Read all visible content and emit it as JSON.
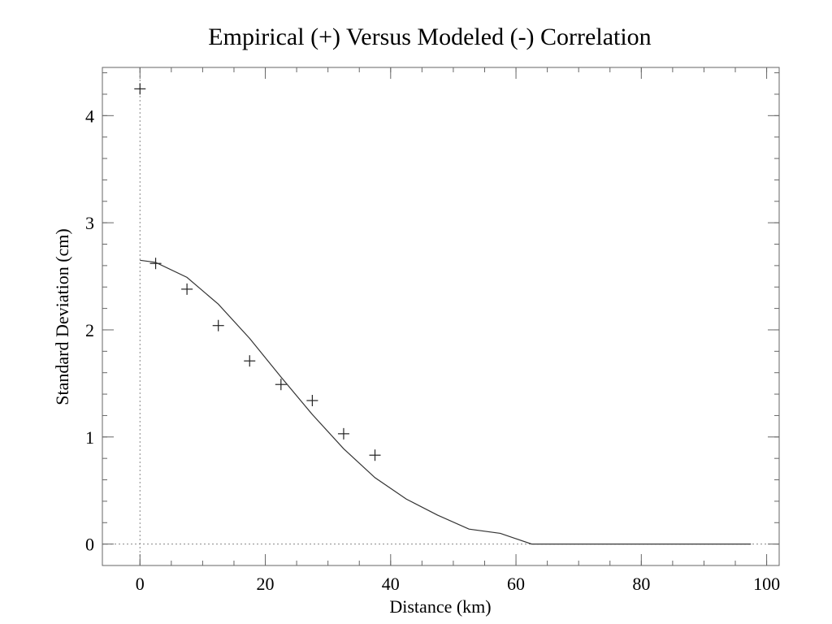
{
  "chart_data": {
    "type": "scatter",
    "title": "Empirical (+) Versus Modeled (-) Correlation",
    "xlabel": "Distance (km)",
    "ylabel": "Standard Deviation (cm)",
    "xlim": [
      -6,
      102
    ],
    "ylim": [
      -0.2,
      4.45
    ],
    "x_ticks": [
      0,
      20,
      40,
      60,
      80,
      100
    ],
    "y_ticks": [
      0,
      1,
      2,
      3,
      4
    ],
    "x_minor_step": 5,
    "y_minor_step": 0.2,
    "grid": false,
    "reference_lines": {
      "x_zero": "dotted",
      "y_zero": "dotted"
    },
    "series": [
      {
        "marker": "plus",
        "style": "markers",
        "x": [
          0,
          2.5,
          7.5,
          12.5,
          17.5,
          22.5,
          27.5,
          32.5,
          37.5
        ],
        "y": [
          4.25,
          2.62,
          2.38,
          2.04,
          1.71,
          1.49,
          1.34,
          1.03,
          0.83
        ]
      },
      {
        "style": "line",
        "x": [
          0,
          2.5,
          7.5,
          12.5,
          17.5,
          22.5,
          27.5,
          32.5,
          37.5,
          42.5,
          47.5,
          52.5,
          57.5,
          62.5,
          67.5,
          72.5,
          77.5,
          82.5,
          87.5,
          92.5,
          97.5
        ],
        "y": [
          2.65,
          2.63,
          2.49,
          2.24,
          1.92,
          1.56,
          1.21,
          0.89,
          0.62,
          0.42,
          0.27,
          0.14,
          0.1,
          0.0,
          0.0,
          0.0,
          0.0,
          0.0,
          0.0,
          0.0,
          0.0
        ]
      }
    ],
    "colors": {
      "axis": "#666666",
      "line": "#333333",
      "marker": "#222222",
      "reference": "#888888"
    }
  }
}
